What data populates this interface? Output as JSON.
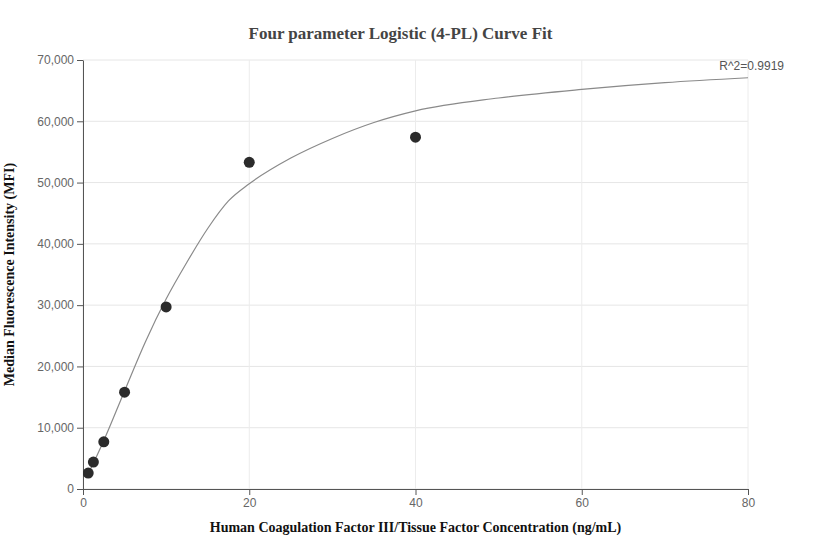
{
  "chart_data": {
    "type": "scatter",
    "title": "Four parameter Logistic (4-PL) Curve Fit",
    "x_label": "Human Coagulation Factor III/Tissue Factor Concentration (ng/mL)",
    "y_label": "Median Fluorescence Intensity (MFI)",
    "annotation": "R^2=0.9919",
    "series": [
      {
        "type": "scatter",
        "color": "#2b2b2b",
        "marker": "circle",
        "x": [
          0.625,
          1.25,
          2.5,
          5,
          10,
          20,
          40
        ],
        "values": [
          2600,
          4400,
          7700,
          15800,
          29700,
          53300,
          57400
        ]
      },
      {
        "type": "line",
        "color": "#8a8a8a",
        "line_style": "solid",
        "x": [
          0.625,
          1.25,
          2.5,
          5,
          7.5,
          10,
          12.5,
          15,
          17.5,
          20,
          25,
          30,
          35,
          40,
          50,
          60,
          70,
          80
        ],
        "values": [
          2500,
          4200,
          7900,
          16000,
          24000,
          31000,
          37000,
          42500,
          47000,
          49800,
          54000,
          57200,
          59800,
          61700,
          63800,
          65200,
          66300,
          67100
        ]
      }
    ],
    "xlim": [
      0,
      80
    ],
    "xticks": [
      0,
      20,
      40,
      60,
      80
    ],
    "ylim": [
      0,
      70000
    ],
    "yticks": [
      {
        "value": 0,
        "label": "0"
      },
      {
        "value": 10000,
        "label": "10,000"
      },
      {
        "value": 20000,
        "label": "20,000"
      },
      {
        "value": 30000,
        "label": "30,000"
      },
      {
        "value": 40000,
        "label": "40,000"
      },
      {
        "value": 50000,
        "label": "50,000"
      },
      {
        "value": 60000,
        "label": "60,000"
      },
      {
        "value": 70000,
        "label": "70,000"
      }
    ],
    "grid": true
  }
}
